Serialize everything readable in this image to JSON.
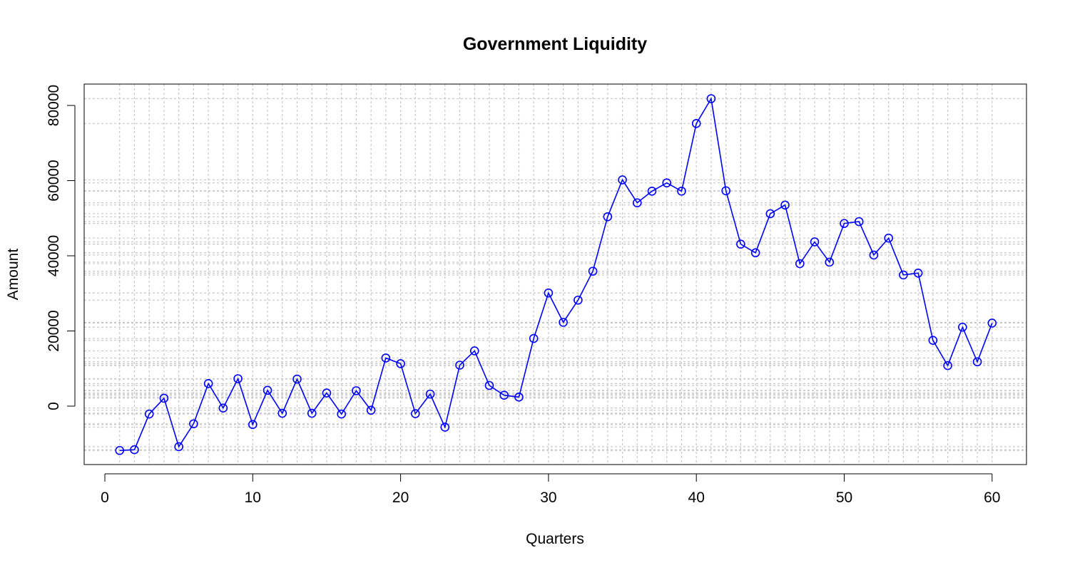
{
  "chart_data": {
    "type": "line",
    "title": "Government Liquidity",
    "xlabel": "Quarters",
    "ylabel": "Amount",
    "xlim": [
      0,
      62
    ],
    "ylim": [
      -15000,
      85000
    ],
    "x_ticks": [
      0,
      10,
      20,
      30,
      40,
      50,
      60
    ],
    "y_ticks": [
      0,
      20000,
      40000,
      60000,
      80000
    ],
    "grid": true,
    "grid_style": "dotted light gray lines at every x value and every y value",
    "series": [
      {
        "color": "#0000FF",
        "marker": "open-circle",
        "x": [
          1,
          2,
          3,
          4,
          5,
          6,
          7,
          8,
          9,
          10,
          11,
          12,
          13,
          14,
          15,
          16,
          17,
          18,
          19,
          20,
          21,
          22,
          23,
          24,
          25,
          26,
          27,
          28,
          29,
          30,
          31,
          32,
          33,
          34,
          35,
          36,
          37,
          38,
          39,
          40,
          41,
          42,
          43,
          44,
          45,
          46,
          47,
          48,
          49,
          50,
          51,
          52,
          53,
          54,
          55,
          56,
          57,
          58,
          59,
          60
        ],
        "values": [
          -11800,
          -11600,
          -2100,
          2100,
          -10800,
          -4700,
          6000,
          -500,
          7300,
          -4900,
          4200,
          -1900,
          7200,
          -1900,
          3500,
          -2100,
          4100,
          -1100,
          12800,
          11300,
          -2000,
          3200,
          -5600,
          10900,
          14700,
          5500,
          2900,
          2400,
          18000,
          30100,
          22300,
          28200,
          35900,
          50400,
          60200,
          54100,
          57200,
          59400,
          57200,
          75200,
          81800,
          57300,
          43100,
          40800,
          51200,
          53500,
          37900,
          43700,
          38300,
          48600,
          49100,
          40200,
          44700,
          34900,
          35400,
          17500,
          10800,
          21000,
          11800,
          22100
        ]
      }
    ]
  }
}
